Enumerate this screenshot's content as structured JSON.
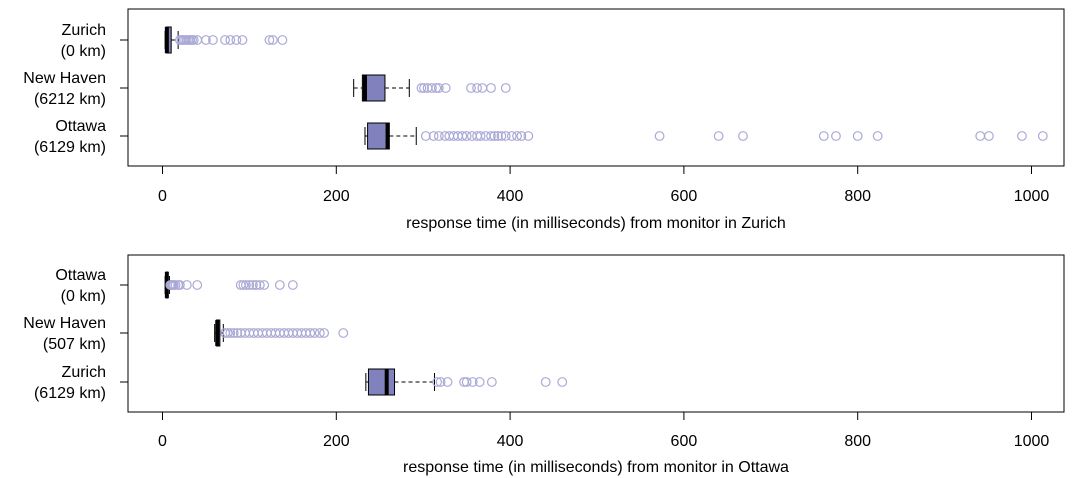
{
  "colors": {
    "box_fill": "#8181bd",
    "outlier": "#a9a9d6"
  },
  "chart_data": [
    {
      "type": "boxplot",
      "xlabel": "response time (in milliseconds) from monitor in Zurich",
      "xlim": [
        0,
        1000
      ],
      "xticks": [
        0,
        200,
        400,
        600,
        800,
        1000
      ],
      "series": [
        {
          "name": "Zurich",
          "distance": "(0 km)",
          "whisker_low": 3,
          "q1": 4,
          "median": 5,
          "q3": 10,
          "whisker_high": 18,
          "outliers": [
            20,
            22,
            24,
            26,
            28,
            30,
            32,
            34,
            36,
            40,
            50,
            58,
            72,
            78,
            85,
            92,
            123,
            127,
            138
          ]
        },
        {
          "name": "New Haven",
          "distance": "(6212 km)",
          "whisker_low": 220,
          "q1": 230,
          "median": 233,
          "q3": 256,
          "whisker_high": 284,
          "outliers": [
            298,
            301,
            305,
            310,
            315,
            318,
            326,
            355,
            362,
            368,
            378,
            395
          ]
        },
        {
          "name": "Ottawa",
          "distance": "(6129 km)",
          "whisker_low": 233,
          "q1": 236,
          "median": 259,
          "q3": 261,
          "whisker_high": 292,
          "outliers": [
            303,
            312,
            318,
            325,
            330,
            335,
            340,
            345,
            350,
            356,
            362,
            366,
            372,
            378,
            382,
            386,
            390,
            395,
            402,
            408,
            413,
            421,
            572,
            640,
            668,
            761,
            775,
            800,
            823,
            941,
            951,
            989,
            1013
          ]
        }
      ]
    },
    {
      "type": "boxplot",
      "xlabel": "response time (in milliseconds) from monitor in Ottawa",
      "xlim": [
        0,
        1000
      ],
      "xticks": [
        0,
        200,
        400,
        600,
        800,
        1000
      ],
      "series": [
        {
          "name": "Ottawa",
          "distance": "(0 km)",
          "whisker_low": 3,
          "q1": 4,
          "median": 5,
          "q3": 6,
          "whisker_high": 8,
          "outliers": [
            9,
            10,
            11,
            12,
            13,
            15,
            18,
            20,
            28,
            40,
            90,
            93,
            96,
            100,
            104,
            108,
            112,
            117,
            135,
            150
          ]
        },
        {
          "name": "New Haven",
          "distance": "(507 km)",
          "whisker_low": 60,
          "q1": 62,
          "median": 63,
          "q3": 66,
          "whisker_high": 70,
          "outliers": [
            72,
            75,
            78,
            82,
            86,
            90,
            95,
            100,
            105,
            110,
            115,
            120,
            125,
            130,
            135,
            140,
            145,
            150,
            155,
            160,
            165,
            170,
            175,
            181,
            186,
            208
          ]
        },
        {
          "name": "Zurich",
          "distance": "(6129 km)",
          "whisker_low": 234,
          "q1": 237,
          "median": 258,
          "q3": 267,
          "whisker_high": 313,
          "outliers": [
            316,
            320,
            328,
            347,
            350,
            357,
            365,
            379,
            441,
            460
          ]
        }
      ]
    }
  ]
}
